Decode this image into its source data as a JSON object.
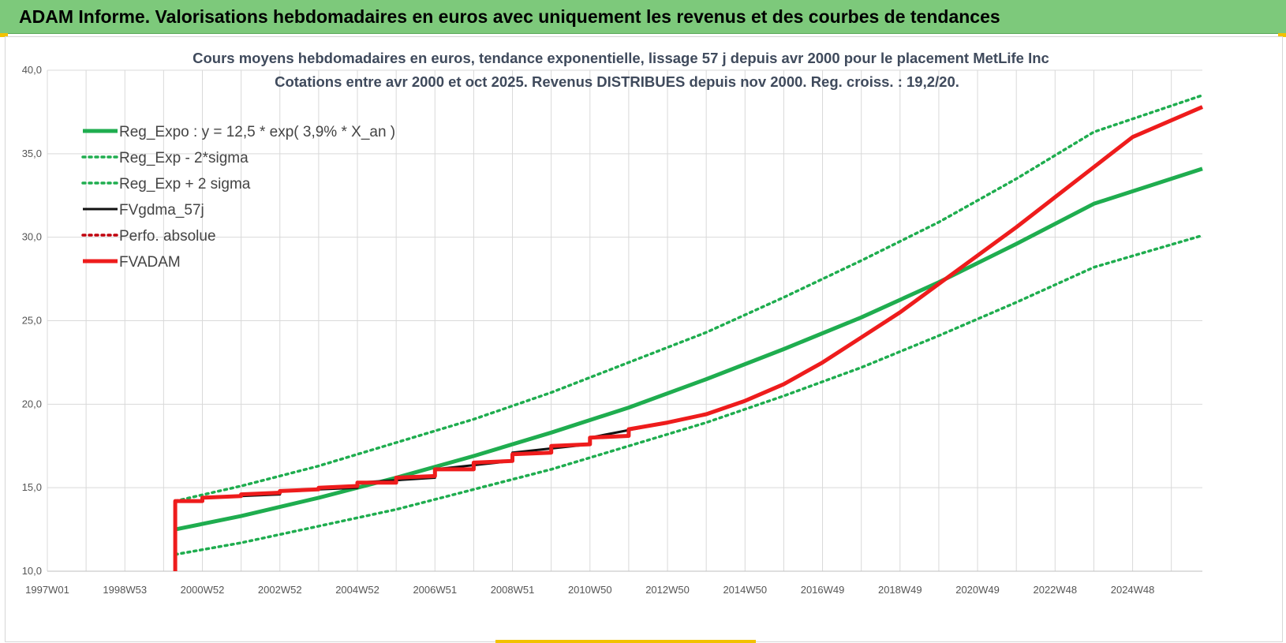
{
  "banner": {
    "title": "ADAM Informe. Valorisations hebdomadaires en euros avec uniquement les revenus et des courbes de tendances"
  },
  "colors": {
    "banner": "#7dc97b",
    "green": "#1fad4f",
    "red": "#ee1c1c",
    "black": "#111111",
    "grid": "#d9d9d9"
  },
  "chart_data": {
    "type": "line",
    "title": "Cours moyens hebdomadaires en euros, tendance exponentielle, lissage 57 j depuis avr 2000 pour le placement MetLife Inc",
    "subtitle": "Cotations entre avr 2000 et oct 2025.  Revenus DISTRIBUES depuis nov 2000. Reg. croiss. : 19,2/20.",
    "x_range": [
      1997.0,
      2026.8
    ],
    "ylim": [
      10,
      40
    ],
    "y_ticks": [
      10,
      15,
      20,
      25,
      30,
      35,
      40
    ],
    "y_tick_labels": [
      "10,0",
      "15,0",
      "20,0",
      "25,0",
      "30,0",
      "35,0",
      "40,0"
    ],
    "x_ticks": [
      {
        "x": 1997.0,
        "label": "1997W01"
      },
      {
        "x": 1999.0,
        "label": "1998W53"
      },
      {
        "x": 2001.0,
        "label": "2000W52"
      },
      {
        "x": 2003.0,
        "label": "2002W52"
      },
      {
        "x": 2005.0,
        "label": "2004W52"
      },
      {
        "x": 2007.0,
        "label": "2006W51"
      },
      {
        "x": 2009.0,
        "label": "2008W51"
      },
      {
        "x": 2011.0,
        "label": "2010W50"
      },
      {
        "x": 2013.0,
        "label": "2012W50"
      },
      {
        "x": 2015.0,
        "label": "2014W50"
      },
      {
        "x": 2017.0,
        "label": "2016W49"
      },
      {
        "x": 2019.0,
        "label": "2018W49"
      },
      {
        "x": 2021.0,
        "label": "2020W49"
      },
      {
        "x": 2023.0,
        "label": "2022W48"
      },
      {
        "x": 2025.0,
        "label": "2024W48"
      }
    ],
    "legend_position": "top-left",
    "grid": true,
    "series": [
      {
        "name": "Reg_Expo : y = 12,5 * exp( 3,9% *  X_an )",
        "style": "solid-thick",
        "color": "#1fad4f",
        "x": [
          2000.3,
          2002,
          2004,
          2006,
          2008,
          2010,
          2012,
          2014,
          2016,
          2018,
          2020,
          2022,
          2024,
          2026.8
        ],
        "y": [
          12.5,
          13.3,
          14.4,
          15.6,
          16.9,
          18.3,
          19.8,
          21.5,
          23.3,
          25.2,
          27.3,
          29.6,
          32.0,
          34.1
        ]
      },
      {
        "name": "Reg_Exp - 2*sigma",
        "style": "dotted",
        "color": "#1fad4f",
        "x": [
          2000.3,
          2002,
          2004,
          2006,
          2008,
          2010,
          2012,
          2014,
          2016,
          2018,
          2020,
          2022,
          2024,
          2026.8
        ],
        "y": [
          11.0,
          11.7,
          12.7,
          13.7,
          14.9,
          16.1,
          17.5,
          18.9,
          20.5,
          22.2,
          24.1,
          26.1,
          28.2,
          30.1
        ]
      },
      {
        "name": "Reg_Exp + 2 sigma",
        "style": "dotted",
        "color": "#1fad4f",
        "x": [
          2000.3,
          2002,
          2004,
          2006,
          2008,
          2010,
          2012,
          2014,
          2016,
          2018,
          2020,
          2022,
          2024,
          2026.8
        ],
        "y": [
          14.2,
          15.1,
          16.3,
          17.7,
          19.1,
          20.7,
          22.5,
          24.3,
          26.4,
          28.6,
          30.9,
          33.5,
          36.3,
          38.5
        ]
      },
      {
        "name": "FVgdma_57j",
        "style": "solid",
        "color": "#111111",
        "x": [
          2000.3,
          2000.3,
          2001,
          2001,
          2003,
          2003,
          2005,
          2005,
          2007,
          2007,
          2009,
          2009,
          2011,
          2011,
          2013,
          2014,
          2015,
          2016,
          2017,
          2018,
          2019,
          2020,
          2021,
          2022,
          2023,
          2024,
          2025,
          2026.8
        ],
        "y": [
          10.0,
          14.2,
          14.2,
          14.4,
          14.6,
          14.8,
          15.0,
          15.3,
          15.6,
          16.1,
          16.6,
          17.1,
          17.6,
          18.0,
          18.9,
          19.4,
          20.2,
          21.2,
          22.5,
          24.0,
          25.5,
          27.2,
          28.9,
          30.6,
          32.4,
          34.2,
          36.0,
          37.8
        ]
      },
      {
        "name": "Perfo. absolue",
        "style": "dotted",
        "color": "#c0000c",
        "x": [],
        "y": []
      },
      {
        "name": "FVADAM",
        "style": "solid-thick",
        "color": "#ee1c1c",
        "x": [
          2000.3,
          2000.3,
          2001,
          2001,
          2002,
          2002,
          2003,
          2003,
          2004,
          2004,
          2005,
          2005,
          2006,
          2006,
          2007,
          2007,
          2008,
          2008,
          2009,
          2009,
          2010,
          2010,
          2011,
          2011,
          2012,
          2012,
          2013,
          2014,
          2015,
          2016,
          2017,
          2018,
          2019,
          2020,
          2021,
          2022,
          2023,
          2024,
          2025,
          2026.8
        ],
        "y": [
          10.0,
          14.2,
          14.2,
          14.4,
          14.5,
          14.6,
          14.7,
          14.8,
          14.9,
          15.0,
          15.1,
          15.3,
          15.3,
          15.6,
          15.7,
          16.1,
          16.1,
          16.5,
          16.6,
          17.0,
          17.1,
          17.5,
          17.6,
          18.0,
          18.1,
          18.5,
          18.9,
          19.4,
          20.2,
          21.2,
          22.5,
          24.0,
          25.5,
          27.2,
          28.9,
          30.6,
          32.4,
          34.2,
          36.0,
          37.8
        ]
      }
    ]
  }
}
